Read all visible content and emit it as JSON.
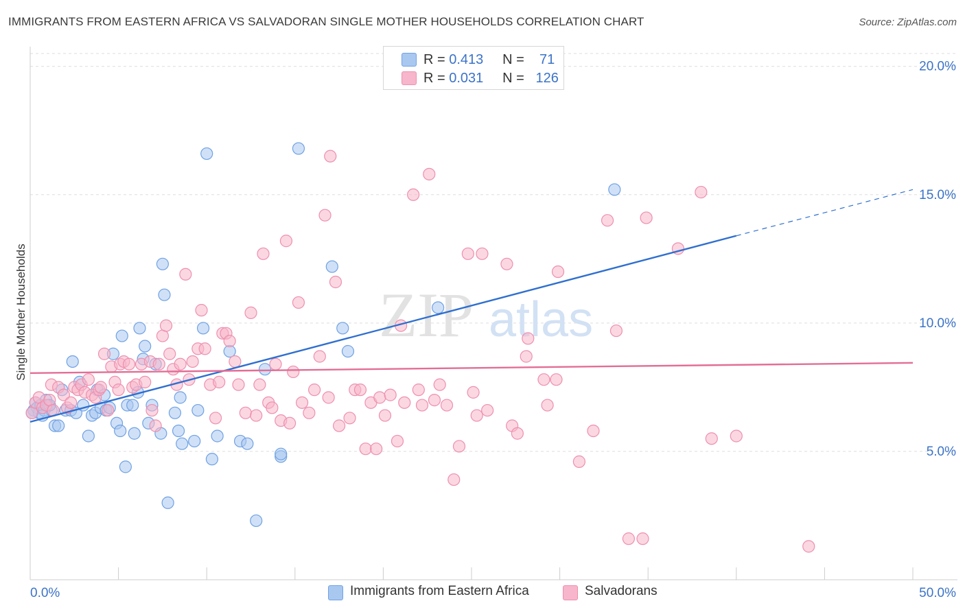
{
  "title": "IMMIGRANTS FROM EASTERN AFRICA VS SALVADORAN SINGLE MOTHER HOUSEHOLDS CORRELATION CHART",
  "source": "Source: ZipAtlas.com",
  "watermark": {
    "zip": "ZIP",
    "atlas": "atlas"
  },
  "legend_top": [
    {
      "r_label": "R =",
      "r_value": "0.413",
      "n_label": "N =",
      "n_value": "71",
      "color": "#a9c8f0"
    },
    {
      "r_label": "R =",
      "r_value": "0.031",
      "n_label": "N =",
      "n_value": "126",
      "color": "#f7b6cb"
    }
  ],
  "chart_data": {
    "type": "scatter",
    "title": "IMMIGRANTS FROM EASTERN AFRICA VS SALVADORAN SINGLE MOTHER HOUSEHOLDS CORRELATION CHART",
    "xlabel": "",
    "ylabel": "Single Mother Households",
    "xlim": [
      0,
      50
    ],
    "ylim": [
      0,
      20.5
    ],
    "x_tick_labels": [
      "0.0%",
      "50.0%"
    ],
    "y_tick_labels": [
      "5.0%",
      "10.0%",
      "15.0%",
      "20.0%"
    ],
    "y_ticks": [
      5,
      10,
      15,
      20
    ],
    "grid": "horizontal dashed",
    "legend_placement": "top-center and bottom",
    "series": [
      {
        "name": "Immigrants from Eastern Africa",
        "color": "#6fa1e4",
        "fill": "#a9c8f0",
        "line_color": "#2f6fcf",
        "trend": {
          "x0": 0,
          "y0": 6.15,
          "x1": 40,
          "y1": 13.4,
          "dashed_to_x": 50,
          "dashed_to_y": 15.2
        },
        "points": [
          [
            0.2,
            6.6
          ],
          [
            0.3,
            6.9
          ],
          [
            0.4,
            6.7
          ],
          [
            0.5,
            6.5
          ],
          [
            0.6,
            6.8
          ],
          [
            0.8,
            6.6
          ],
          [
            0.9,
            7.0
          ],
          [
            1.0,
            6.8
          ],
          [
            1.2,
            6.6
          ],
          [
            1.4,
            6.0
          ],
          [
            1.6,
            6.0
          ],
          [
            1.8,
            7.4
          ],
          [
            2.0,
            6.6
          ],
          [
            2.3,
            6.6
          ],
          [
            2.4,
            8.5
          ],
          [
            2.6,
            6.5
          ],
          [
            2.8,
            7.7
          ],
          [
            3.0,
            6.8
          ],
          [
            3.3,
            5.6
          ],
          [
            3.5,
            6.4
          ],
          [
            3.7,
            6.5
          ],
          [
            3.8,
            7.4
          ],
          [
            4.0,
            6.7
          ],
          [
            4.2,
            7.2
          ],
          [
            4.3,
            6.6
          ],
          [
            4.5,
            6.7
          ],
          [
            4.7,
            8.8
          ],
          [
            4.9,
            6.1
          ],
          [
            5.1,
            5.8
          ],
          [
            5.2,
            9.5
          ],
          [
            5.4,
            4.4
          ],
          [
            5.5,
            6.8
          ],
          [
            5.8,
            6.8
          ],
          [
            5.9,
            5.7
          ],
          [
            6.1,
            7.3
          ],
          [
            6.2,
            9.8
          ],
          [
            6.4,
            8.6
          ],
          [
            6.5,
            9.1
          ],
          [
            6.7,
            6.1
          ],
          [
            6.9,
            6.8
          ],
          [
            7.1,
            8.4
          ],
          [
            7.4,
            5.7
          ],
          [
            7.5,
            12.3
          ],
          [
            7.6,
            11.1
          ],
          [
            7.8,
            3.0
          ],
          [
            8.2,
            6.5
          ],
          [
            8.4,
            5.8
          ],
          [
            8.6,
            5.3
          ],
          [
            8.5,
            7.1
          ],
          [
            9.3,
            5.4
          ],
          [
            9.5,
            6.6
          ],
          [
            9.8,
            9.8
          ],
          [
            10.0,
            16.6
          ],
          [
            10.3,
            4.7
          ],
          [
            10.6,
            5.6
          ],
          [
            11.3,
            8.9
          ],
          [
            11.9,
            5.4
          ],
          [
            12.3,
            5.3
          ],
          [
            12.8,
            2.3
          ],
          [
            13.3,
            8.2
          ],
          [
            14.2,
            4.8
          ],
          [
            14.2,
            4.9
          ],
          [
            15.2,
            16.8
          ],
          [
            17.1,
            12.2
          ],
          [
            17.7,
            9.8
          ],
          [
            18.0,
            8.9
          ],
          [
            23.1,
            10.6
          ],
          [
            33.1,
            15.2
          ],
          [
            0.1,
            6.5
          ],
          [
            0.7,
            6.4
          ],
          [
            1.1,
            6.8
          ]
        ]
      },
      {
        "name": "Salvadorans",
        "color": "#ee8fae",
        "fill": "#f7b6cb",
        "line_color": "#e36d96",
        "trend": {
          "x0": 0,
          "y0": 8.05,
          "x1": 50,
          "y1": 8.45
        },
        "points": [
          [
            0.1,
            6.5
          ],
          [
            0.3,
            6.9
          ],
          [
            0.5,
            7.1
          ],
          [
            0.7,
            6.7
          ],
          [
            0.9,
            6.8
          ],
          [
            1.1,
            7.0
          ],
          [
            1.3,
            6.6
          ],
          [
            1.2,
            7.6
          ],
          [
            1.6,
            7.5
          ],
          [
            1.9,
            7.2
          ],
          [
            2.1,
            6.7
          ],
          [
            2.3,
            6.9
          ],
          [
            2.5,
            7.5
          ],
          [
            2.7,
            7.4
          ],
          [
            2.9,
            7.6
          ],
          [
            3.1,
            7.3
          ],
          [
            3.3,
            7.8
          ],
          [
            3.5,
            7.2
          ],
          [
            3.7,
            7.1
          ],
          [
            3.9,
            7.4
          ],
          [
            4.0,
            7.5
          ],
          [
            4.2,
            8.8
          ],
          [
            4.4,
            6.6
          ],
          [
            4.6,
            8.3
          ],
          [
            4.8,
            7.7
          ],
          [
            5.0,
            7.4
          ],
          [
            5.1,
            8.4
          ],
          [
            5.3,
            8.5
          ],
          [
            5.6,
            8.4
          ],
          [
            5.8,
            7.5
          ],
          [
            6.0,
            7.6
          ],
          [
            6.3,
            8.4
          ],
          [
            6.5,
            7.7
          ],
          [
            6.8,
            8.5
          ],
          [
            6.9,
            6.6
          ],
          [
            7.1,
            6.0
          ],
          [
            7.3,
            8.4
          ],
          [
            7.5,
            9.5
          ],
          [
            7.7,
            9.9
          ],
          [
            7.9,
            8.8
          ],
          [
            8.1,
            8.2
          ],
          [
            8.3,
            7.6
          ],
          [
            8.5,
            8.4
          ],
          [
            8.8,
            11.9
          ],
          [
            9.0,
            7.8
          ],
          [
            9.2,
            8.5
          ],
          [
            9.5,
            9.0
          ],
          [
            9.7,
            10.5
          ],
          [
            9.9,
            9.0
          ],
          [
            10.2,
            7.6
          ],
          [
            10.5,
            6.3
          ],
          [
            10.7,
            7.7
          ],
          [
            10.9,
            9.6
          ],
          [
            11.1,
            9.6
          ],
          [
            11.3,
            9.3
          ],
          [
            11.6,
            8.5
          ],
          [
            11.8,
            7.6
          ],
          [
            12.2,
            6.5
          ],
          [
            12.5,
            10.4
          ],
          [
            12.8,
            6.4
          ],
          [
            13.0,
            7.6
          ],
          [
            13.2,
            12.7
          ],
          [
            13.5,
            6.9
          ],
          [
            13.7,
            6.7
          ],
          [
            13.9,
            8.4
          ],
          [
            14.2,
            6.2
          ],
          [
            14.5,
            13.2
          ],
          [
            14.7,
            6.1
          ],
          [
            14.9,
            8.1
          ],
          [
            15.2,
            10.8
          ],
          [
            15.4,
            6.9
          ],
          [
            15.8,
            6.5
          ],
          [
            16.1,
            7.4
          ],
          [
            16.4,
            8.7
          ],
          [
            16.7,
            14.2
          ],
          [
            16.9,
            7.1
          ],
          [
            17.0,
            16.5
          ],
          [
            17.3,
            11.6
          ],
          [
            17.5,
            6.0
          ],
          [
            18.1,
            6.3
          ],
          [
            18.4,
            7.4
          ],
          [
            18.7,
            7.4
          ],
          [
            19.0,
            5.1
          ],
          [
            19.3,
            6.9
          ],
          [
            19.6,
            5.1
          ],
          [
            19.8,
            7.1
          ],
          [
            20.1,
            6.4
          ],
          [
            20.4,
            7.2
          ],
          [
            20.8,
            5.4
          ],
          [
            21.0,
            9.9
          ],
          [
            21.2,
            6.9
          ],
          [
            21.7,
            15.0
          ],
          [
            22.0,
            7.4
          ],
          [
            22.2,
            6.8
          ],
          [
            22.6,
            15.8
          ],
          [
            22.9,
            7.0
          ],
          [
            23.2,
            7.6
          ],
          [
            23.6,
            6.8
          ],
          [
            24.0,
            3.9
          ],
          [
            24.3,
            5.2
          ],
          [
            24.8,
            12.7
          ],
          [
            25.1,
            7.3
          ],
          [
            25.3,
            6.4
          ],
          [
            25.6,
            12.7
          ],
          [
            25.9,
            6.6
          ],
          [
            27.0,
            12.3
          ],
          [
            27.3,
            6.0
          ],
          [
            27.6,
            5.7
          ],
          [
            28.1,
            8.7
          ],
          [
            28.2,
            9.4
          ],
          [
            29.1,
            7.8
          ],
          [
            29.3,
            6.8
          ],
          [
            29.8,
            7.8
          ],
          [
            29.9,
            12.0
          ],
          [
            31.1,
            4.6
          ],
          [
            31.9,
            5.8
          ],
          [
            32.7,
            14.0
          ],
          [
            33.2,
            9.7
          ],
          [
            33.9,
            1.6
          ],
          [
            34.7,
            1.6
          ],
          [
            34.9,
            14.1
          ],
          [
            36.7,
            12.9
          ],
          [
            38.0,
            15.1
          ],
          [
            38.6,
            5.5
          ],
          [
            40.0,
            5.6
          ],
          [
            44.1,
            1.3
          ]
        ]
      }
    ]
  }
}
